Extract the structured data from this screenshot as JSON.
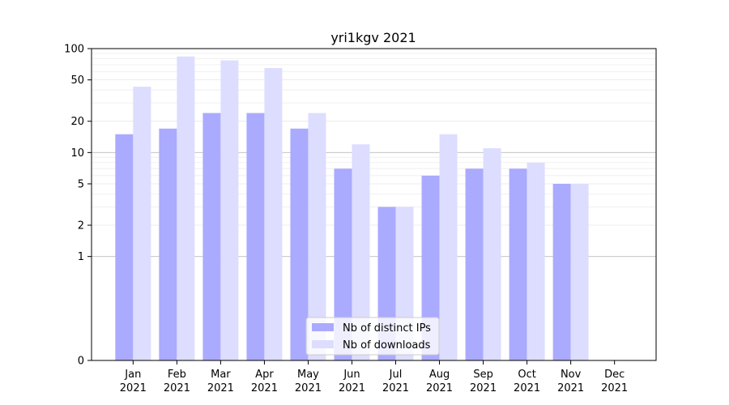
{
  "chart_data": {
    "type": "bar",
    "title": "yri1kgv 2021",
    "xlabel": "",
    "ylabel": "",
    "yscale": "symlog",
    "ylim": [
      0,
      100
    ],
    "y_ticks": [
      0,
      1,
      2,
      5,
      10,
      20,
      50,
      100
    ],
    "grid": "horizontal",
    "legend_position": "bottom-center",
    "categories": [
      [
        "Jan",
        "2021"
      ],
      [
        "Feb",
        "2021"
      ],
      [
        "Mar",
        "2021"
      ],
      [
        "Apr",
        "2021"
      ],
      [
        "May",
        "2021"
      ],
      [
        "Jun",
        "2021"
      ],
      [
        "Jul",
        "2021"
      ],
      [
        "Aug",
        "2021"
      ],
      [
        "Sep",
        "2021"
      ],
      [
        "Oct",
        "2021"
      ],
      [
        "Nov",
        "2021"
      ],
      [
        "Dec",
        "2021"
      ]
    ],
    "series": [
      {
        "name": "Nb of distinct IPs",
        "color": "#aaaaff",
        "values": [
          15,
          17,
          24,
          24,
          17,
          7,
          3,
          6,
          7,
          7,
          5,
          0
        ]
      },
      {
        "name": "Nb of downloads",
        "color": "#ddddff",
        "values": [
          43,
          84,
          77,
          65,
          24,
          12,
          3,
          15,
          11,
          8,
          5,
          0
        ]
      }
    ]
  }
}
